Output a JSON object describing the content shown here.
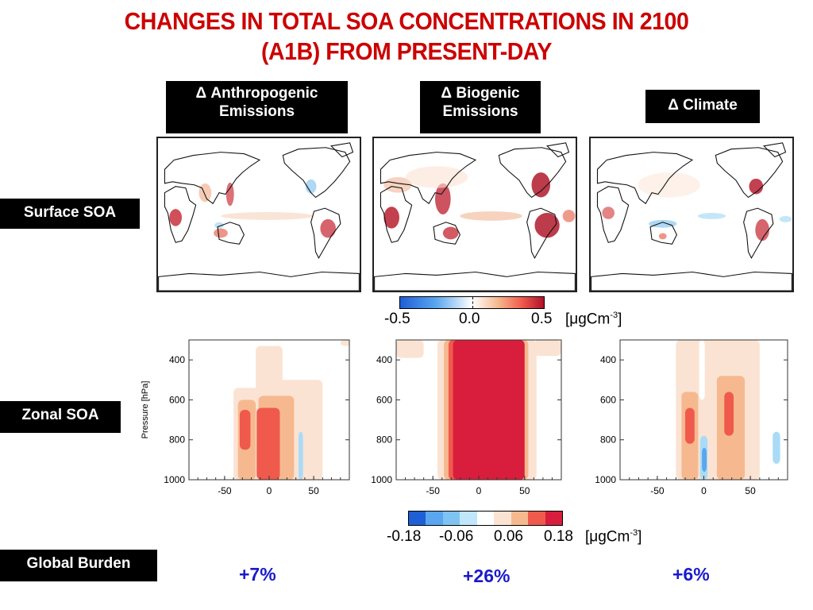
{
  "title": {
    "line1": "CHANGES IN TOTAL SOA CONCENTRATIONS IN 2100",
    "line2": "(A1B) FROM PRESENT-DAY"
  },
  "columns": [
    {
      "line1": "Δ Anthropogenic",
      "line2": "Emissions",
      "burden": "+7%"
    },
    {
      "line1": "Δ Biogenic",
      "line2": "Emissions",
      "burden": "+26%"
    },
    {
      "line1": "Δ Climate",
      "line2": "",
      "burden": "+6%"
    }
  ],
  "rows": {
    "surface": "Surface SOA",
    "zonal": "Zonal SOA",
    "burden": "Global Burden"
  },
  "colors": {
    "title": "#cc0000",
    "burden": "#1a1acc",
    "neg_strong": "#1f5fd6",
    "neg_mid": "#5aa6ef",
    "neg_light": "#a9dbf7",
    "pos_light": "#fbe3d3",
    "pos_mid": "#f6b98f",
    "pos_strong": "#ef5a4c",
    "pos_max": "#d81e3c"
  },
  "chart_data": [
    {
      "type": "heatmap",
      "title": "Surface SOA",
      "colorbar": {
        "ticks": [
          "-0.5",
          "0.0",
          "0.5"
        ],
        "unit": "[μgCm",
        "unit_sup": "-3",
        "unit_close": "]",
        "range": [
          -0.5,
          0.5
        ]
      },
      "panels": [
        "Δ Anthropogenic Emissions",
        "Δ Biogenic Emissions",
        "Δ Climate"
      ]
    },
    {
      "type": "heatmap",
      "title": "Zonal SOA",
      "ylabel": "Pressure [hPa]",
      "yticks": [
        "400",
        "600",
        "800",
        "1000"
      ],
      "xticks": [
        "-50",
        "0",
        "50"
      ],
      "xlim": [
        -90,
        90
      ],
      "ylim": [
        1000,
        300
      ],
      "colorbar": {
        "ticks": [
          "-0.18",
          "-0.06",
          "0.06",
          "0.18"
        ],
        "unit": "[μgCm",
        "unit_sup": "-3",
        "unit_close": "]",
        "levels": [
          -0.24,
          -0.18,
          -0.12,
          -0.06,
          0,
          0.06,
          0.12,
          0.18,
          0.24
        ]
      },
      "panels": [
        "Δ Anthropogenic Emissions",
        "Δ Biogenic Emissions",
        "Δ Climate"
      ]
    }
  ],
  "global_burden": [
    "+7%",
    "+26%",
    "+6%"
  ]
}
